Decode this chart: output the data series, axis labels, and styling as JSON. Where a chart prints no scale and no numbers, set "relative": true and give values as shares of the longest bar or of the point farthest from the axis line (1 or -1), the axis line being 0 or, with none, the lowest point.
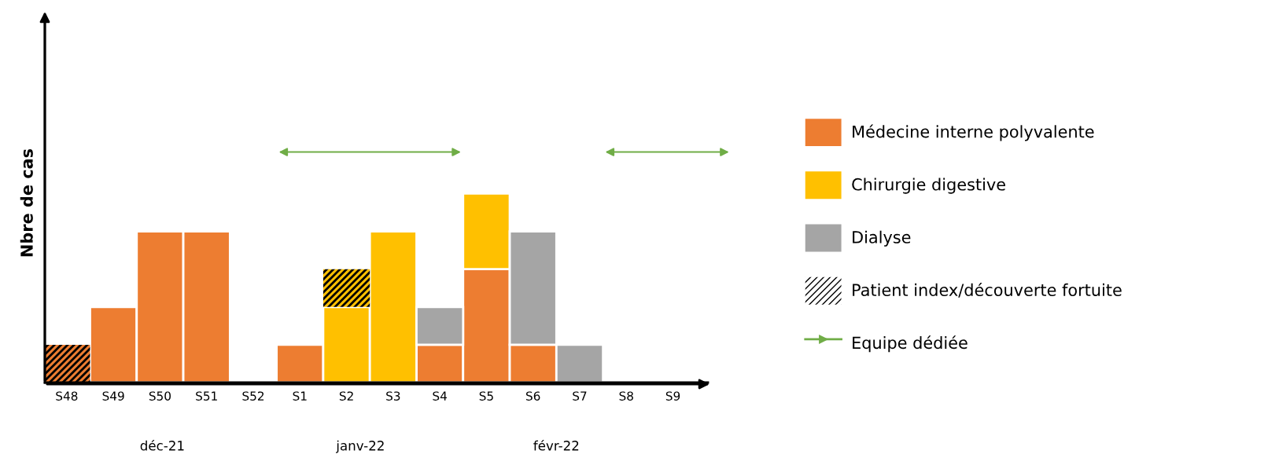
{
  "chart_data": {
    "type": "bar",
    "stacked": true,
    "relative": true,
    "ylabel": "Nbre de cas",
    "categories": [
      "S48",
      "S49",
      "S50",
      "S51",
      "S52",
      "S1",
      "S2",
      "S3",
      "S4",
      "S5",
      "S6",
      "S7",
      "S8",
      "S9"
    ],
    "series": [
      {
        "name": "Médecine interne polyvalente",
        "color": "#ed7d31",
        "values": [
          0,
          0.4,
          0.8,
          0.8,
          0,
          0.2,
          0,
          0,
          0.2,
          0.6,
          0.2,
          0,
          0,
          0
        ]
      },
      {
        "name": "Chirurgie digestive",
        "color": "#ffc000",
        "values": [
          0,
          0,
          0,
          0,
          0,
          0,
          0.4,
          0.8,
          0,
          0.4,
          0,
          0,
          0,
          0
        ]
      },
      {
        "name": "Dialyse",
        "color": "#a5a5a5",
        "values": [
          0,
          0,
          0,
          0,
          0,
          0,
          0,
          0,
          0.2,
          0,
          0.6,
          0.2,
          0,
          0
        ]
      },
      {
        "name": "Patient index/découverte fortuite",
        "color": "#000000",
        "colors": [
          "#ed7d31",
          "#ed7d31",
          "#ed7d31",
          "#ed7d31",
          "#ed7d31",
          "#ed7d31",
          "#ffc000",
          "#ffc000",
          "#ffc000",
          "#ffc000",
          "#ffc000",
          "#ffc000",
          "#ffc000",
          "#ffc000"
        ],
        "values": [
          0.2,
          0,
          0,
          0,
          0,
          0,
          0.2,
          0,
          0,
          0,
          0,
          0,
          0,
          0
        ]
      }
    ],
    "annotations": [
      "déc-21",
      "janv-22",
      "févr-22",
      "Equipe dédiée"
    ],
    "legend": "right",
    "grid": false
  }
}
